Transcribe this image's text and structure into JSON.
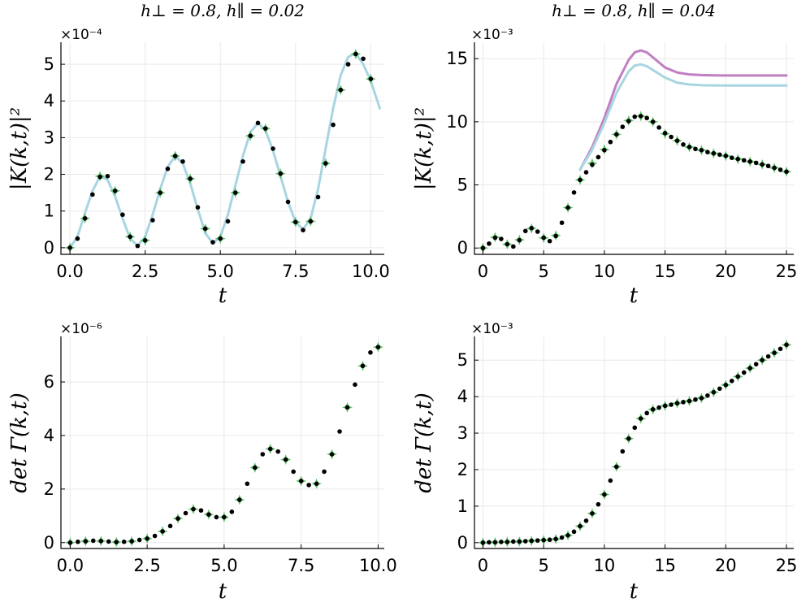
{
  "colors": {
    "exact_line": "#a8d5e2",
    "exact_line_2": "#c07fc3",
    "marker_green": "#3cb84a",
    "marker_black": "#000000"
  },
  "chart_data": [
    {
      "id": "top-left",
      "type": "line+scatter",
      "title": "h⊥ = 0.8, h∥ = 0.02",
      "xlabel": "t",
      "ylabel": "|K(k,t)|²",
      "multiplier": "×10⁻⁴",
      "xlim": [
        -0.3,
        10.45
      ],
      "ylim": [
        -0.18,
        5.6
      ],
      "xticks": [
        0,
        2.5,
        5,
        7.5,
        10
      ],
      "xtick_labels": [
        "0.0",
        "2.5",
        "5.0",
        "7.5",
        "10.0"
      ],
      "yticks": [
        0,
        1,
        2,
        3,
        4,
        5
      ],
      "ytick_labels": [
        "0",
        "1",
        "2",
        "3",
        "4",
        "5"
      ],
      "lines": [
        {
          "name": "exact",
          "color": "#a8d5e2",
          "x": [
            0,
            0.25,
            0.5,
            0.75,
            1.0,
            1.25,
            1.5,
            1.75,
            2.0,
            2.25,
            2.5,
            2.75,
            3.0,
            3.25,
            3.5,
            3.75,
            4.0,
            4.25,
            4.5,
            4.75,
            5.0,
            5.25,
            5.5,
            5.75,
            6.0,
            6.25,
            6.5,
            6.75,
            7.0,
            7.25,
            7.5,
            7.75,
            8.0,
            8.25,
            8.5,
            8.75,
            9.0,
            9.25,
            9.5,
            9.75,
            10.0,
            10.3
          ],
          "y": [
            0,
            0.3,
            0.95,
            1.55,
            1.95,
            1.85,
            1.4,
            0.8,
            0.25,
            0.05,
            0.3,
            0.9,
            1.6,
            2.2,
            2.5,
            2.3,
            1.75,
            1.05,
            0.4,
            0.12,
            0.3,
            0.9,
            1.7,
            2.5,
            3.15,
            3.4,
            3.2,
            2.65,
            1.95,
            1.25,
            0.7,
            0.5,
            0.8,
            1.6,
            2.7,
            3.8,
            4.7,
            5.2,
            5.3,
            5.0,
            4.55,
            3.8
          ]
        }
      ],
      "markers_green": {
        "x": [
          0,
          0.5,
          1.0,
          1.5,
          2.0,
          2.5,
          3.0,
          3.5,
          4.0,
          4.5,
          5.0,
          5.5,
          6.0,
          6.5,
          7.0,
          7.5,
          8.0,
          8.5,
          9.0,
          9.5,
          10.0
        ],
        "y": [
          0,
          0.8,
          1.95,
          1.55,
          0.3,
          0.2,
          1.5,
          2.5,
          1.88,
          0.52,
          0.25,
          1.5,
          3.05,
          3.25,
          2.02,
          0.7,
          0.72,
          2.3,
          4.3,
          5.28,
          4.6
        ]
      },
      "markers_black": {
        "x": [
          0,
          0.25,
          0.5,
          0.75,
          1.0,
          1.25,
          1.5,
          1.75,
          2.0,
          2.25,
          2.5,
          2.75,
          3.0,
          3.25,
          3.5,
          3.75,
          4.0,
          4.25,
          4.5,
          4.75,
          5.0,
          5.25,
          5.5,
          5.75,
          6.0,
          6.25,
          6.5,
          6.75,
          7.0,
          7.25,
          7.5,
          7.75,
          8.0,
          8.25,
          8.5,
          8.75,
          9.0,
          9.25,
          9.5,
          9.75,
          10.0
        ],
        "y": [
          0,
          0.25,
          0.8,
          1.45,
          1.93,
          1.95,
          1.55,
          0.9,
          0.3,
          0.05,
          0.2,
          0.75,
          1.5,
          2.15,
          2.5,
          2.35,
          1.88,
          1.1,
          0.52,
          0.15,
          0.25,
          0.72,
          1.5,
          2.35,
          3.05,
          3.4,
          3.25,
          2.7,
          2.02,
          1.25,
          0.7,
          0.48,
          0.72,
          1.38,
          2.3,
          3.35,
          4.3,
          5.0,
          5.28,
          5.15,
          4.6
        ]
      }
    },
    {
      "id": "top-right",
      "type": "line+scatter",
      "title": "h⊥ = 0.8, h∥ = 0.04",
      "xlabel": "t",
      "ylabel": "|K(k,t)|²",
      "multiplier": "×10⁻³",
      "xlim": [
        -0.7,
        25.6
      ],
      "ylim": [
        -0.5,
        16.3
      ],
      "xticks": [
        0,
        5,
        10,
        15,
        20,
        25
      ],
      "xtick_labels": [
        "0",
        "5",
        "10",
        "15",
        "20",
        "25"
      ],
      "yticks": [
        0,
        5,
        10,
        15
      ],
      "ytick_labels": [
        "0",
        "5",
        "10",
        "15"
      ],
      "lines": [
        {
          "name": "exact-purple",
          "color": "#c07fc3",
          "x": [
            8,
            9,
            10,
            11,
            12,
            12.5,
            13,
            13.5,
            14,
            15,
            16,
            17,
            18,
            19,
            20,
            21,
            22,
            23,
            24,
            25
          ],
          "y": [
            6.2,
            8.0,
            10.3,
            13.0,
            14.9,
            15.5,
            15.65,
            15.5,
            15.1,
            14.3,
            13.9,
            13.75,
            13.7,
            13.68,
            13.67,
            13.67,
            13.67,
            13.67,
            13.67,
            13.67
          ]
        },
        {
          "name": "exact-blue",
          "color": "#a8d5e2",
          "x": [
            8,
            9,
            10,
            11,
            12,
            12.5,
            13,
            13.5,
            14,
            15,
            16,
            17,
            18,
            19,
            20,
            21,
            22,
            23,
            24,
            25
          ],
          "y": [
            6.2,
            7.8,
            9.9,
            12.3,
            14.0,
            14.45,
            14.55,
            14.4,
            14.1,
            13.5,
            13.1,
            12.95,
            12.9,
            12.88,
            12.87,
            12.87,
            12.87,
            12.87,
            12.87,
            12.87
          ]
        }
      ],
      "markers_green": {
        "x": [
          0,
          1,
          2,
          3,
          4,
          5,
          6,
          7,
          8,
          9,
          10,
          11,
          12,
          13,
          14,
          15,
          16,
          17,
          18,
          19,
          20,
          21,
          22,
          23,
          24,
          25
        ],
        "y": [
          0,
          0.85,
          0.3,
          0.65,
          1.55,
          0.8,
          1.0,
          3.2,
          5.4,
          6.7,
          7.8,
          9.0,
          10.1,
          10.45,
          10.0,
          9.05,
          8.5,
          8.0,
          7.75,
          7.5,
          7.3,
          7.05,
          6.85,
          6.62,
          6.35,
          6.05
        ]
      },
      "markers_black": {
        "x": [
          0,
          0.5,
          1,
          1.5,
          2,
          2.5,
          3,
          3.5,
          4,
          4.5,
          5,
          5.5,
          6,
          6.5,
          7,
          7.5,
          8,
          8.5,
          9,
          9.5,
          10,
          10.5,
          11,
          11.5,
          12,
          12.5,
          13,
          13.5,
          14,
          14.5,
          15,
          15.5,
          16,
          16.5,
          17,
          17.5,
          18,
          18.5,
          19,
          19.5,
          20,
          20.5,
          21,
          21.5,
          22,
          22.5,
          23,
          23.5,
          24,
          24.5,
          25
        ],
        "y": [
          0,
          0.35,
          0.82,
          0.72,
          0.3,
          0.12,
          0.62,
          1.35,
          1.58,
          1.3,
          0.82,
          0.55,
          0.95,
          2.0,
          3.2,
          4.4,
          5.4,
          6.0,
          6.6,
          7.2,
          7.75,
          8.4,
          9.0,
          9.6,
          10.05,
          10.4,
          10.45,
          10.3,
          10.0,
          9.55,
          9.1,
          8.8,
          8.5,
          8.2,
          8.0,
          7.85,
          7.75,
          7.6,
          7.5,
          7.4,
          7.3,
          7.15,
          7.05,
          6.95,
          6.85,
          6.75,
          6.62,
          6.5,
          6.35,
          6.2,
          6.05
        ]
      }
    },
    {
      "id": "bottom-left",
      "type": "scatter",
      "title": "",
      "xlabel": "t",
      "ylabel": "det Γ(k,t)",
      "multiplier": "×10⁻⁶",
      "xlim": [
        -0.3,
        10.2
      ],
      "ylim": [
        -0.22,
        7.7
      ],
      "xticks": [
        0,
        2.5,
        5,
        7.5,
        10
      ],
      "xtick_labels": [
        "0.0",
        "2.5",
        "5.0",
        "7.5",
        "10.0"
      ],
      "yticks": [
        0,
        2,
        4,
        6
      ],
      "ytick_labels": [
        "0",
        "2",
        "4",
        "6"
      ],
      "lines": [],
      "markers_green": {
        "x": [
          0,
          0.5,
          1.0,
          1.5,
          2.0,
          2.5,
          3.0,
          3.5,
          4.0,
          4.5,
          5.0,
          5.5,
          6.0,
          6.5,
          7.0,
          7.5,
          8.0,
          8.5,
          9.0,
          9.5,
          10.0
        ],
        "y": [
          0,
          0.05,
          0.06,
          0.02,
          0.05,
          0.15,
          0.42,
          0.9,
          1.25,
          1.05,
          0.95,
          1.6,
          2.8,
          3.5,
          3.1,
          2.3,
          2.2,
          3.3,
          5.05,
          6.6,
          7.3
        ]
      },
      "markers_black": {
        "x": [
          0,
          0.25,
          0.5,
          0.75,
          1.0,
          1.25,
          1.5,
          1.75,
          2.0,
          2.25,
          2.5,
          2.75,
          3.0,
          3.25,
          3.5,
          3.75,
          4.0,
          4.25,
          4.5,
          4.75,
          5.0,
          5.25,
          5.5,
          5.75,
          6.0,
          6.25,
          6.5,
          6.75,
          7.0,
          7.25,
          7.5,
          7.75,
          8.0,
          8.25,
          8.5,
          8.75,
          9.0,
          9.25,
          9.5,
          9.75,
          10.0
        ],
        "y": [
          0,
          0.03,
          0.05,
          0.07,
          0.06,
          0.04,
          0.02,
          0.03,
          0.05,
          0.1,
          0.15,
          0.25,
          0.42,
          0.62,
          0.9,
          1.1,
          1.25,
          1.2,
          1.05,
          0.95,
          0.95,
          1.15,
          1.6,
          2.2,
          2.8,
          3.3,
          3.5,
          3.4,
          3.1,
          2.65,
          2.3,
          2.15,
          2.2,
          2.65,
          3.3,
          4.15,
          5.05,
          5.9,
          6.6,
          7.1,
          7.3
        ]
      }
    },
    {
      "id": "bottom-right",
      "type": "scatter",
      "title": "",
      "xlabel": "t",
      "ylabel": "det Γ(k,t)",
      "multiplier": "×10⁻³",
      "xlim": [
        -0.7,
        25.6
      ],
      "ylim": [
        -0.16,
        5.65
      ],
      "xticks": [
        0,
        5,
        10,
        15,
        20,
        25
      ],
      "xtick_labels": [
        "0",
        "5",
        "10",
        "15",
        "20",
        "25"
      ],
      "yticks": [
        0,
        1,
        2,
        3,
        4,
        5
      ],
      "ytick_labels": [
        "0",
        "1",
        "2",
        "3",
        "4",
        "5"
      ],
      "lines": [],
      "markers_green": {
        "x": [
          0,
          1,
          2,
          3,
          4,
          5,
          6,
          7,
          8,
          9,
          10,
          11,
          12,
          13,
          14,
          15,
          16,
          17,
          18,
          19,
          20,
          21,
          22,
          23,
          24,
          25
        ],
        "y": [
          0,
          0.01,
          0.02,
          0.03,
          0.05,
          0.07,
          0.1,
          0.2,
          0.45,
          0.8,
          1.32,
          2.08,
          2.85,
          3.4,
          3.65,
          3.75,
          3.82,
          3.88,
          3.96,
          4.12,
          4.32,
          4.55,
          4.78,
          5.0,
          5.2,
          5.42
        ]
      },
      "markers_black": {
        "x": [
          0,
          0.5,
          1,
          1.5,
          2,
          2.5,
          3,
          3.5,
          4,
          4.5,
          5,
          5.5,
          6,
          6.5,
          7,
          7.5,
          8,
          8.5,
          9,
          9.5,
          10,
          10.5,
          11,
          11.5,
          12,
          12.5,
          13,
          13.5,
          14,
          14.5,
          15,
          15.5,
          16,
          16.5,
          17,
          17.5,
          18,
          18.5,
          19,
          19.5,
          20,
          20.5,
          21,
          21.5,
          22,
          22.5,
          23,
          23.5,
          24,
          24.5,
          25
        ],
        "y": [
          0,
          0.01,
          0.01,
          0.02,
          0.02,
          0.03,
          0.03,
          0.04,
          0.05,
          0.06,
          0.07,
          0.08,
          0.1,
          0.14,
          0.2,
          0.3,
          0.45,
          0.6,
          0.8,
          1.05,
          1.32,
          1.7,
          2.08,
          2.5,
          2.85,
          3.15,
          3.4,
          3.55,
          3.65,
          3.7,
          3.75,
          3.78,
          3.82,
          3.85,
          3.88,
          3.92,
          3.96,
          4.03,
          4.12,
          4.22,
          4.32,
          4.43,
          4.55,
          4.66,
          4.78,
          4.89,
          5.0,
          5.1,
          5.2,
          5.31,
          5.42
        ]
      }
    }
  ]
}
